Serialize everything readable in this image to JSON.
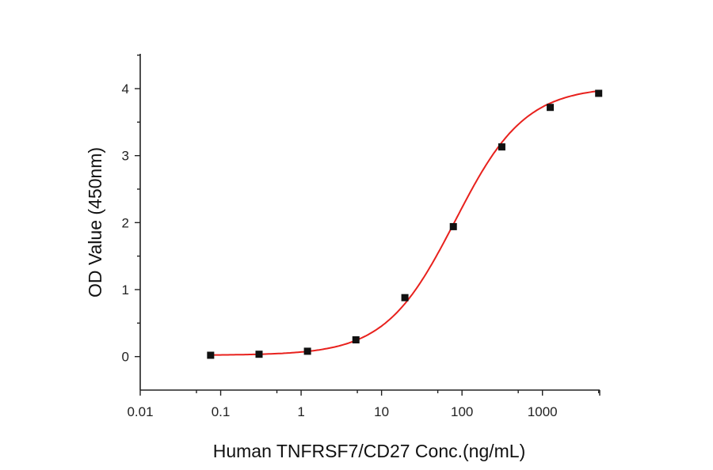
{
  "chart_data": {
    "type": "scatter",
    "title": "",
    "xlabel": "Human TNFRSF7/CD27 Conc.(ng/mL)",
    "ylabel": "OD Value (450nm)",
    "xscale": "log",
    "xlim": [
      0.01,
      5150
    ],
    "ylim": [
      -0.5,
      4.52
    ],
    "x_ticks": [
      0.01,
      0.1,
      1,
      10,
      100,
      1000
    ],
    "x_tick_labels": [
      "0.01",
      "0.1",
      "1",
      "10",
      "100",
      "1000"
    ],
    "y_ticks": [
      0,
      1,
      2,
      3,
      4
    ],
    "y_tick_labels": [
      "0",
      "1",
      "2",
      "3",
      "4"
    ],
    "grid": false,
    "series": [
      {
        "x": [
          0.075,
          0.3,
          1.2,
          4.8,
          19.5,
          78,
          312.5,
          1250,
          5000
        ],
        "y": [
          0.02,
          0.035,
          0.08,
          0.25,
          0.88,
          1.94,
          3.13,
          3.72,
          3.93
        ],
        "marker": "square",
        "color": "#111111"
      }
    ],
    "fit": {
      "model": "4PL",
      "bottom": 0.02,
      "top": 4.03,
      "ec50": 82,
      "hill": 1.0,
      "color": "#e8211d"
    }
  }
}
